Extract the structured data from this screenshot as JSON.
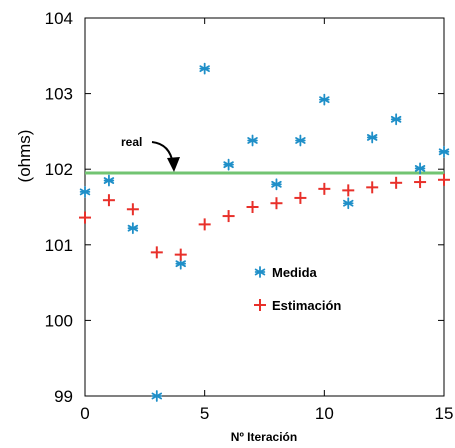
{
  "chart_data": {
    "type": "scatter",
    "title": "",
    "xlabel": "Nº Iteración",
    "ylabel": "(ohms)",
    "xlim": [
      0,
      15
    ],
    "ylim": [
      99,
      104
    ],
    "xticks": [
      0,
      5,
      10,
      15
    ],
    "yticks": [
      99,
      100,
      101,
      102,
      103,
      104
    ],
    "grid": false,
    "legend_position": "center-right",
    "series": [
      {
        "name": "Medida",
        "marker": "asterisk",
        "color": "#1f8fc8",
        "x": [
          0,
          1,
          2,
          3,
          4,
          5,
          6,
          7,
          8,
          9,
          10,
          11,
          12,
          13,
          14,
          15
        ],
        "y": [
          101.7,
          101.85,
          101.22,
          99.0,
          100.75,
          103.33,
          102.06,
          102.38,
          101.8,
          102.38,
          102.92,
          101.55,
          102.42,
          102.66,
          102.01,
          102.23
        ]
      },
      {
        "name": "Estimación",
        "marker": "plus",
        "color": "#e8302a",
        "x": [
          0,
          1,
          2,
          3,
          4,
          5,
          6,
          7,
          8,
          9,
          10,
          11,
          12,
          13,
          14,
          15
        ],
        "y": [
          101.36,
          101.59,
          101.47,
          100.9,
          100.87,
          101.27,
          101.38,
          101.5,
          101.55,
          101.62,
          101.74,
          101.72,
          101.76,
          101.82,
          101.83,
          101.86
        ]
      }
    ],
    "reference_line": {
      "label": "real",
      "y": 101.95,
      "color": "#72c472"
    }
  }
}
